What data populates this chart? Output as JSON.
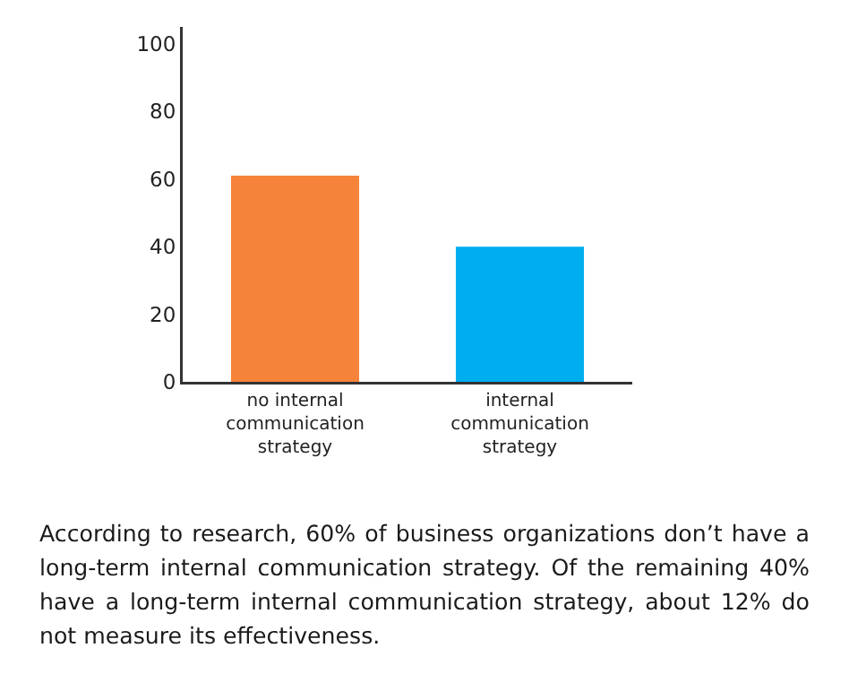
{
  "chart_data": {
    "type": "bar",
    "categories": [
      "no internal communication strategy",
      "internal communication strategy"
    ],
    "values": [
      61,
      40
    ],
    "colors": [
      "#f5843a",
      "#00aeef"
    ],
    "ylim": [
      0,
      105
    ],
    "yticks": [
      0,
      20,
      40,
      60,
      80,
      100
    ],
    "grid": false,
    "annotations": [
      "According to research, 60% of business organizations don’t have a long-term internal communication strategy. Of the remaining 40% have a long-term internal communication strategy, about 12% do not measure its effectiveness."
    ]
  }
}
